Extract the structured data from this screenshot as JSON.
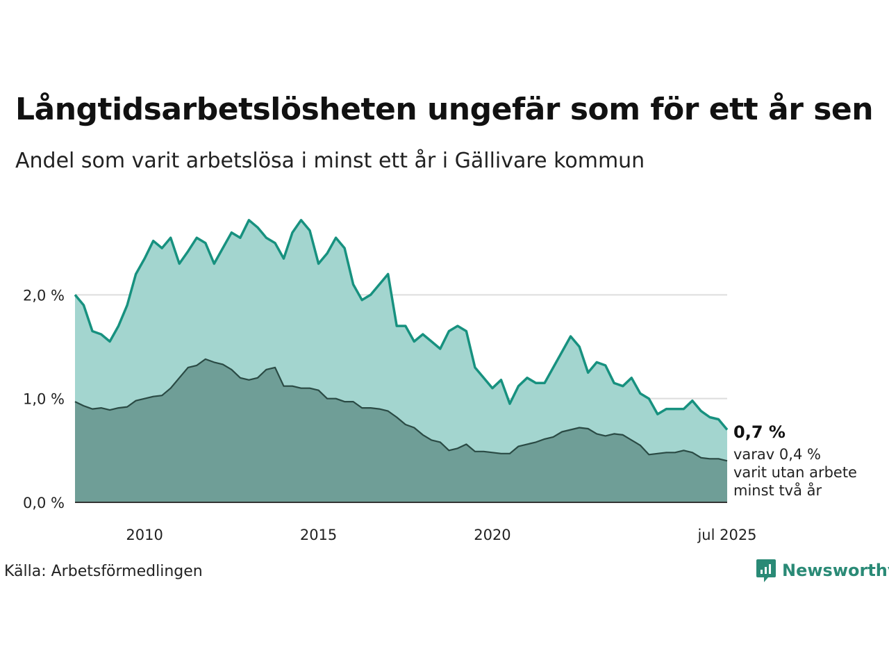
{
  "title": "Långtidsarbetslösheten ungefär som för ett år sen",
  "subtitle": "Andel som varit arbetslösa i minst ett år i Gällivare kommun",
  "source": "Källa: Arbetsförmedlingen",
  "brand": "Newsworthy",
  "colors": {
    "long_line": "#17917f",
    "long_fill": "#a3d5cf",
    "two_line": "#2a4a44",
    "two_fill": "#6f9e97",
    "grid": "#dddddd",
    "brand": "#2a8a76"
  },
  "chart_data": {
    "type": "area",
    "title": "Långtidsarbetslösheten ungefär som för ett år sen",
    "subtitle": "Andel som varit arbetslösa i minst ett år i Gällivare kommun",
    "x_tick_labels": [
      "2010",
      "2015",
      "2020",
      "jul 2025"
    ],
    "y_tick_labels": [
      "0,0 %",
      "1,0 %",
      "2,0 %"
    ],
    "ylim": [
      0,
      3.0
    ],
    "grid": true,
    "start_year": 2008,
    "interval": "quarterly",
    "end_label_main": "0,7 %",
    "end_label_sub": [
      "varav 0,4 %",
      "varit utan arbete",
      "minst två år"
    ],
    "series": [
      {
        "values": [
          2.0,
          1.9,
          1.65,
          1.62,
          1.55,
          1.7,
          1.9,
          2.2,
          2.35,
          2.52,
          2.45,
          2.55,
          2.3,
          2.42,
          2.55,
          2.5,
          2.3,
          2.45,
          2.6,
          2.55,
          2.72,
          2.65,
          2.55,
          2.5,
          2.35,
          2.6,
          2.72,
          2.62,
          2.3,
          2.4,
          2.55,
          2.45,
          2.1,
          1.95,
          2.0,
          2.1,
          2.2,
          1.7,
          1.7,
          1.55,
          1.62,
          1.55,
          1.48,
          1.65,
          1.7,
          1.65,
          1.3,
          1.2,
          1.1,
          1.18,
          0.95,
          1.12,
          1.2,
          1.15,
          1.15,
          1.3,
          1.45,
          1.6,
          1.5,
          1.25,
          1.35,
          1.32,
          1.15,
          1.12,
          1.2,
          1.05,
          1.0,
          0.85,
          0.9,
          0.9,
          0.9,
          0.98,
          0.88,
          0.82,
          0.8,
          0.7
        ]
      },
      {
        "values": [
          0.97,
          0.93,
          0.9,
          0.91,
          0.89,
          0.91,
          0.92,
          0.98,
          1.0,
          1.02,
          1.03,
          1.1,
          1.2,
          1.3,
          1.32,
          1.38,
          1.35,
          1.33,
          1.28,
          1.2,
          1.18,
          1.2,
          1.28,
          1.3,
          1.12,
          1.12,
          1.1,
          1.1,
          1.08,
          1.0,
          1.0,
          0.97,
          0.97,
          0.91,
          0.91,
          0.9,
          0.88,
          0.82,
          0.75,
          0.72,
          0.65,
          0.6,
          0.58,
          0.5,
          0.52,
          0.56,
          0.49,
          0.49,
          0.48,
          0.47,
          0.47,
          0.54,
          0.56,
          0.58,
          0.61,
          0.63,
          0.68,
          0.7,
          0.72,
          0.71,
          0.66,
          0.64,
          0.66,
          0.65,
          0.6,
          0.55,
          0.46,
          0.47,
          0.48,
          0.48,
          0.5,
          0.48,
          0.43,
          0.42,
          0.42,
          0.4
        ]
      }
    ]
  }
}
